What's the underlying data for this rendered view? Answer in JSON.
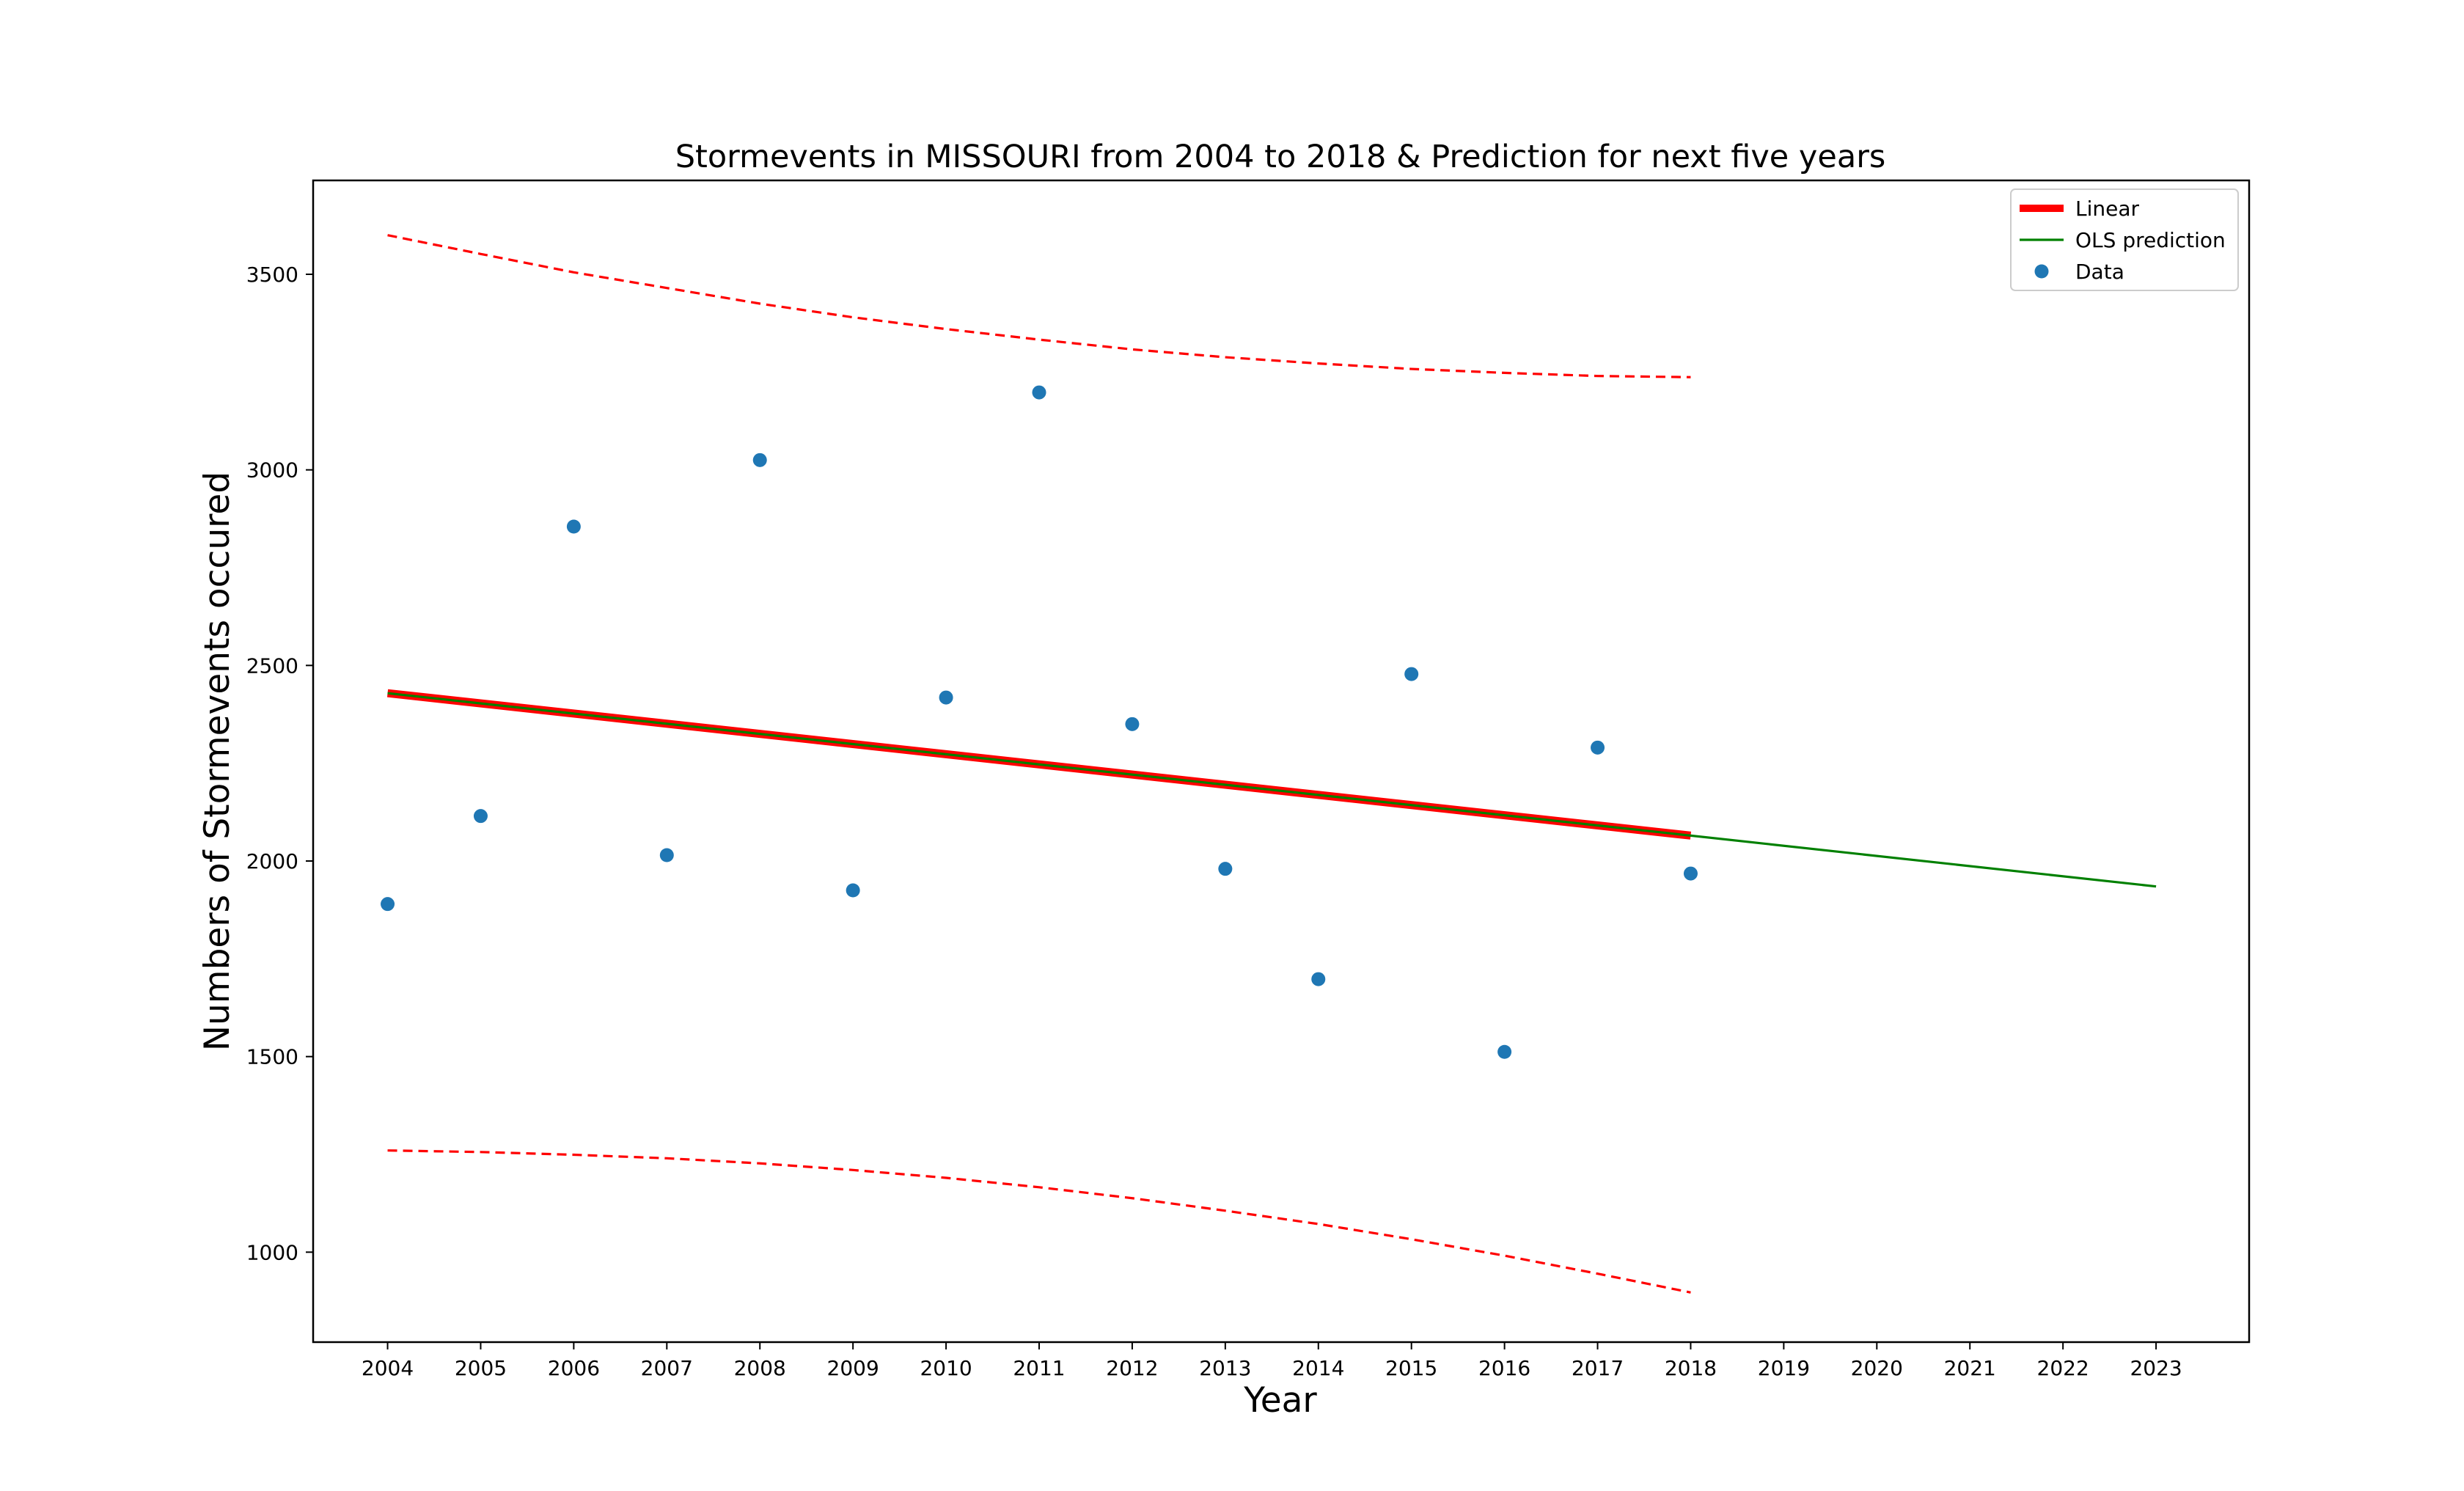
{
  "chart_data": {
    "type": "scatter",
    "title": "Stormevents in MISSOURI from 2004 to 2018 & Prediction for next five years",
    "xlabel": "Year",
    "ylabel": "Numbers of Stormevents occured",
    "xlim": [
      2003.2,
      2024.0
    ],
    "ylim": [
      770,
      3740
    ],
    "x_ticks": [
      2004,
      2005,
      2006,
      2007,
      2008,
      2009,
      2010,
      2011,
      2012,
      2013,
      2014,
      2015,
      2016,
      2017,
      2018,
      2019,
      2020,
      2021,
      2022,
      2023
    ],
    "y_ticks": [
      1000,
      1500,
      2000,
      2500,
      3000,
      3500
    ],
    "grid": false,
    "legend_position": "top-right",
    "series": [
      {
        "name": "Data",
        "kind": "scatter",
        "color": "#1f77b4",
        "x": [
          2004,
          2005,
          2006,
          2007,
          2008,
          2009,
          2010,
          2011,
          2012,
          2013,
          2014,
          2015,
          2016,
          2017,
          2018
        ],
        "y": [
          1890,
          2115,
          2855,
          2015,
          3025,
          1925,
          2418,
          3198,
          2350,
          1980,
          1698,
          2478,
          1512,
          2290,
          1968
        ]
      },
      {
        "name": "Linear",
        "kind": "line",
        "color": "#ff0000",
        "x": [
          2004,
          2018
        ],
        "y": [
          2429,
          2065
        ]
      },
      {
        "name": "OLS prediction",
        "kind": "line",
        "color": "#008000",
        "x": [
          2004,
          2023
        ],
        "y": [
          2429,
          1935
        ]
      },
      {
        "kind": "dashed-upper",
        "color": "#ff0000",
        "x": [
          2004,
          2005,
          2006,
          2007,
          2008,
          2009,
          2010,
          2011,
          2012,
          2013,
          2014,
          2015,
          2016,
          2017,
          2018
        ],
        "y": [
          3600,
          3552,
          3505,
          3465,
          3425,
          3390,
          3360,
          3333,
          3308,
          3288,
          3272,
          3258,
          3248,
          3240,
          3237
        ]
      },
      {
        "kind": "dashed-lower",
        "color": "#ff0000",
        "x": [
          2004,
          2005,
          2006,
          2007,
          2008,
          2009,
          2010,
          2011,
          2012,
          2013,
          2014,
          2015,
          2016,
          2017,
          2018
        ],
        "y": [
          1260,
          1256,
          1249,
          1240,
          1227,
          1210,
          1190,
          1166,
          1138,
          1106,
          1072,
          1033,
          991,
          945,
          897
        ]
      }
    ]
  }
}
